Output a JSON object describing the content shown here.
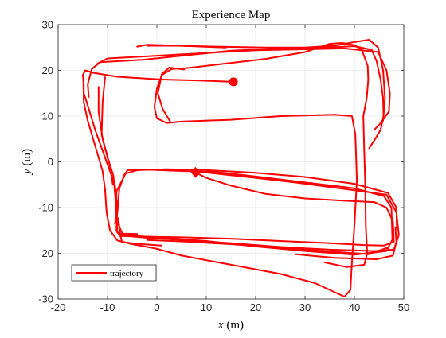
{
  "chart_data": {
    "type": "line",
    "title": "Experience Map",
    "xlabel_var": "x",
    "xlabel_unit": " (m)",
    "ylabel_var": "y",
    "ylabel_unit": " (m)",
    "xlim": [
      -20,
      50
    ],
    "ylim": [
      -30,
      30
    ],
    "xticks": [
      -20,
      -10,
      0,
      10,
      20,
      30,
      40,
      50
    ],
    "yticks": [
      -30,
      -20,
      -10,
      0,
      10,
      20,
      30
    ],
    "grid": true,
    "legend_position": "bottom-left",
    "color": "#ff0000",
    "series": [
      {
        "name": "trajectory",
        "paths": [
          [
            [
              15.5,
              17.5
            ],
            [
              8,
              17.8
            ],
            [
              1,
              18
            ],
            [
              -8,
              18.6
            ],
            [
              -13,
              19.5
            ],
            [
              -14.5,
              20
            ],
            [
              -15,
              19
            ],
            [
              -14.8,
              17
            ],
            [
              -14.8,
              15
            ],
            [
              -14.2,
              13
            ],
            [
              -12.5,
              7
            ],
            [
              -10.2,
              0
            ],
            [
              -8.5,
              -5
            ],
            [
              -8,
              -10
            ],
            [
              -8.2,
              -15
            ],
            [
              -7.5,
              -16.2
            ],
            [
              -1,
              -16.4
            ],
            [
              5,
              -16.5
            ],
            [
              15,
              -16.8
            ],
            [
              25,
              -17.3
            ],
            [
              35,
              -17.8
            ],
            [
              42,
              -18.2
            ],
            [
              46,
              -18.3
            ],
            [
              48,
              -17.5
            ],
            [
              47.8,
              -13
            ],
            [
              46.5,
              -10
            ],
            [
              44,
              -8.8
            ],
            [
              38,
              -8.5
            ],
            [
              30,
              -8
            ],
            [
              22,
              -7
            ],
            [
              15,
              -5.2
            ],
            [
              10,
              -3.5
            ],
            [
              7.8,
              -2.3
            ]
          ],
          [
            [
              7.8,
              -2.3
            ],
            [
              9,
              -2.2
            ],
            [
              14,
              -2.8
            ],
            [
              20,
              -3.5
            ],
            [
              28,
              -4.5
            ],
            [
              35,
              -5.5
            ],
            [
              42,
              -6.5
            ],
            [
              46.5,
              -7.2
            ],
            [
              48.5,
              -11
            ],
            [
              49,
              -16
            ],
            [
              48,
              -19.2
            ],
            [
              44,
              -19.5
            ],
            [
              35,
              -19.2
            ],
            [
              25,
              -18.6
            ],
            [
              15,
              -17.8
            ],
            [
              5,
              -17.1
            ],
            [
              -2,
              -16.6
            ],
            [
              -6,
              -16.2
            ],
            [
              -8,
              -15.5
            ],
            [
              -8.2,
              -12
            ],
            [
              -8.2,
              -6.5
            ],
            [
              -6,
              -1.8
            ],
            [
              -2,
              -1.7
            ],
            [
              5,
              -2
            ],
            [
              12,
              -2.2
            ],
            [
              20,
              -3.2
            ],
            [
              30,
              -4.5
            ],
            [
              40,
              -5.8
            ],
            [
              46,
              -7.5
            ],
            [
              47.5,
              -10
            ],
            [
              47.7,
              -17
            ],
            [
              46.5,
              -19.5
            ],
            [
              40,
              -20.3
            ],
            [
              30,
              -19.5
            ],
            [
              20,
              -18.5
            ],
            [
              10,
              -17.3
            ],
            [
              0,
              -16.5
            ],
            [
              -7.5,
              -16
            ]
          ],
          [
            [
              -14.9,
              18.5
            ],
            [
              -14.8,
              13
            ],
            [
              -14,
              9
            ],
            [
              -12.5,
              3.5
            ],
            [
              -11,
              -2
            ],
            [
              -10.5,
              -6
            ],
            [
              -10.2,
              -11
            ],
            [
              -9.5,
              -15
            ],
            [
              -8,
              -17.2
            ],
            [
              -5,
              -18
            ],
            [
              0,
              -19
            ],
            [
              5,
              -20.5
            ],
            [
              15,
              -22.5
            ],
            [
              25,
              -24.5
            ],
            [
              32,
              -26.5
            ],
            [
              36,
              -28.5
            ],
            [
              38,
              -29.5
            ],
            [
              39.2,
              -28
            ],
            [
              39.5,
              -22
            ],
            [
              40,
              -14
            ],
            [
              40.5,
              -4
            ],
            [
              40.2,
              6
            ],
            [
              39.5,
              10
            ],
            [
              36,
              10.3
            ],
            [
              25,
              10
            ],
            [
              15,
              9.2
            ],
            [
              5,
              8.8
            ],
            [
              2,
              8.5
            ],
            [
              0,
              9.5
            ],
            [
              -0.5,
              12
            ],
            [
              0,
              16
            ],
            [
              1,
              19
            ],
            [
              3,
              20.3
            ],
            [
              6,
              20.5
            ],
            [
              14,
              21.5
            ],
            [
              22,
              22.5
            ],
            [
              30,
              24
            ],
            [
              35,
              25.8
            ],
            [
              37.5,
              26
            ],
            [
              40,
              25.5
            ],
            [
              41.5,
              24.5
            ],
            [
              42.7,
              21
            ],
            [
              42.8,
              18
            ],
            [
              42.5,
              14
            ],
            [
              41.8,
              10
            ],
            [
              42,
              2
            ],
            [
              42.2,
              -5
            ],
            [
              42.3,
              -14
            ],
            [
              42.6,
              -20
            ],
            [
              42,
              -22.5
            ],
            [
              38.5,
              -23
            ],
            [
              34,
              -22
            ]
          ],
          [
            [
              -13.8,
              14.2
            ],
            [
              -14,
              17
            ],
            [
              -13.2,
              20.3
            ],
            [
              -11.5,
              21.8
            ],
            [
              -8,
              22
            ],
            [
              -3,
              22.3
            ],
            [
              5,
              23.2
            ],
            [
              15,
              24.3
            ],
            [
              25,
              24.8
            ],
            [
              35,
              25
            ],
            [
              40,
              25.3
            ],
            [
              43.5,
              24.5
            ],
            [
              44.5,
              22
            ],
            [
              45.3,
              18
            ],
            [
              45.8,
              14
            ],
            [
              45.9,
              10
            ],
            [
              45.3,
              7
            ],
            [
              44.2,
              5
            ],
            [
              43,
              3
            ]
          ],
          [
            [
              -10.5,
              18.5
            ],
            [
              -11,
              13
            ],
            [
              -11.2,
              6
            ],
            [
              -10,
              1
            ],
            [
              -8.8,
              -3
            ],
            [
              -8.4,
              -8
            ],
            [
              -8.1,
              -13
            ],
            [
              -7,
              -15.7
            ],
            [
              -4,
              -15.8
            ]
          ],
          [
            [
              -12,
              21.5
            ],
            [
              -10,
              22.6
            ],
            [
              0,
              23.2
            ],
            [
              10,
              23.8
            ],
            [
              20,
              24.4
            ],
            [
              30,
              24.6
            ],
            [
              38,
              24.8
            ],
            [
              44.8,
              24
            ],
            [
              46.5,
              20
            ],
            [
              47.2,
              15
            ],
            [
              47,
              11
            ],
            [
              45.3,
              8.5
            ]
          ],
          [
            [
              -2,
              25.4
            ],
            [
              4,
              25.4
            ],
            [
              12,
              25.2
            ],
            [
              22,
              25
            ],
            [
              30,
              25
            ],
            [
              36,
              25.4
            ],
            [
              40,
              26.2
            ],
            [
              43,
              26.7
            ],
            [
              44.8,
              25
            ],
            [
              45.8,
              20
            ],
            [
              46.2,
              14
            ],
            [
              45.8,
              9
            ],
            [
              44,
              7
            ]
          ],
          [
            [
              -4,
              25.2
            ],
            [
              -2,
              25.6
            ],
            [
              5,
              25.4
            ],
            [
              14,
              25
            ]
          ],
          [
            [
              -7.8,
              -12.3
            ],
            [
              -7.5,
              -15.5
            ],
            [
              -7.1,
              -17.5
            ],
            [
              -4.5,
              -17.9
            ],
            [
              1,
              -18.3
            ]
          ],
          [
            [
              48.3,
              -14.5
            ],
            [
              48.5,
              -17.5
            ],
            [
              47.8,
              -20.5
            ],
            [
              44.5,
              -21.3
            ],
            [
              36,
              -21
            ],
            [
              28,
              -20.2
            ]
          ],
          [
            [
              -2,
              -17.1
            ],
            [
              5,
              -17.4
            ],
            [
              15,
              -18
            ],
            [
              25,
              -18.8
            ],
            [
              35,
              -19.6
            ],
            [
              43,
              -20.2
            ],
            [
              46.6,
              -18.8
            ]
          ],
          [
            [
              -11.8,
              16.4
            ],
            [
              -11.8,
              11
            ],
            [
              -11,
              5
            ],
            [
              -9.5,
              -1
            ],
            [
              -8.9,
              -5
            ]
          ],
          [
            [
              -8.5,
              -13.5
            ],
            [
              -8,
              -11
            ],
            [
              -7.6,
              -5.8
            ],
            [
              -6.5,
              -2.6
            ],
            [
              -4,
              -1.8
            ],
            [
              2,
              -1.6
            ],
            [
              10,
              -1.8
            ],
            [
              20,
              -2.4
            ],
            [
              30,
              -3.3
            ],
            [
              40,
              -4.8
            ],
            [
              46.8,
              -6.8
            ],
            [
              48.5,
              -10
            ],
            [
              48.6,
              -14.5
            ]
          ],
          [
            [
              2.7,
              8.8
            ],
            [
              1.2,
              11.5
            ],
            [
              0.2,
              15
            ],
            [
              1,
              19.2
            ],
            [
              2.5,
              20.6
            ],
            [
              5.5,
              20.2
            ]
          ]
        ],
        "start_point": [
          15.5,
          17.5
        ],
        "end_point": [
          7.8,
          -2.3
        ]
      }
    ]
  }
}
